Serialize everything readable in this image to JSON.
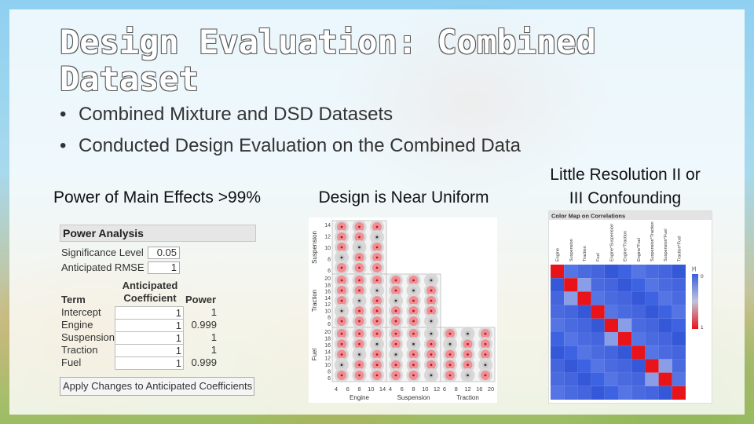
{
  "slide": {
    "title": "Design Evaluation: Combined Dataset",
    "bullets": [
      "Combined Mixture and DSD Datasets",
      "Conducted Design Evaluation on the Combined Data"
    ],
    "bullet_glyph": "•"
  },
  "columns": {
    "power_heading": "Power of Main Effects >99%",
    "uniform_heading": "Design is Near Uniform",
    "confound_heading_line1": "Little Resolution II or",
    "confound_heading_line2": "III Confounding"
  },
  "power_analysis": {
    "title": "Power Analysis",
    "significance_label": "Significance Level",
    "significance_value": "0.05",
    "rmse_label": "Anticipated RMSE",
    "rmse_value": "1",
    "col_term": "Term",
    "col_coef": "Anticipated Coefficient",
    "col_power": "Power",
    "rows": [
      {
        "term": "Intercept",
        "coef": "1",
        "power": "1"
      },
      {
        "term": "Engine",
        "coef": "1",
        "power": "0.999"
      },
      {
        "term": "Suspension",
        "coef": "1",
        "power": "1"
      },
      {
        "term": "Traction",
        "coef": "1",
        "power": "1"
      },
      {
        "term": "Fuel",
        "coef": "1",
        "power": "0.999"
      }
    ],
    "apply_button": "Apply Changes to Anticipated Coefficients"
  },
  "scatter_matrix": {
    "y_labels": [
      "Suspension",
      "Traction",
      "Fuel"
    ],
    "x_labels": [
      "Engine",
      "Suspension",
      "Traction"
    ],
    "y_ticks": [
      [
        "14",
        "12",
        "10",
        "8",
        "6"
      ],
      [
        "20",
        "18",
        "16",
        "14",
        "12",
        "10",
        "8",
        "6"
      ],
      [
        "20",
        "18",
        "16",
        "14",
        "12",
        "10",
        "8",
        "6"
      ]
    ],
    "x_ticks": [
      [
        "4",
        "6",
        "8",
        "10",
        "14"
      ],
      [
        "4",
        "6",
        "8",
        "10",
        "12"
      ],
      [
        "6",
        "8",
        "12",
        "16",
        "20"
      ]
    ]
  },
  "color_map": {
    "title": "Color Map on Correlations",
    "columns": [
      "Engine",
      "Suspension",
      "Traction",
      "Fuel",
      "Engine*Suspension",
      "Engine*Traction",
      "Engine*Fuel",
      "Suspension*Traction",
      "Suspension*Fuel",
      "Traction*Fuel"
    ],
    "legend_title": "|r|",
    "legend_top": "0",
    "legend_bottom": "1",
    "colors": {
      "low": "#3b5fe0",
      "high": "#e8141a",
      "mid": "#c0c4d8"
    }
  }
}
